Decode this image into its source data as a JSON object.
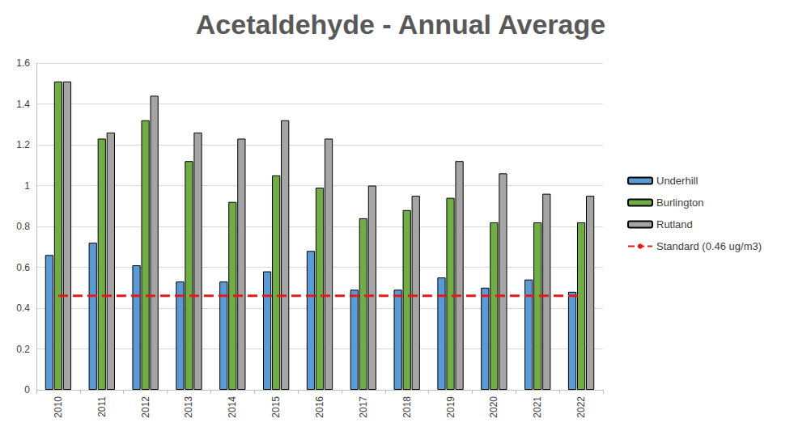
{
  "chart_data": {
    "type": "bar",
    "title": "Acetaldehyde - Annual Average",
    "categories": [
      "2010",
      "2011",
      "2012",
      "2013",
      "2014",
      "2015",
      "2016",
      "2017",
      "2018",
      "2019",
      "2020",
      "2021",
      "2022"
    ],
    "series": [
      {
        "name": "Underhill",
        "color": "#5b9bd5",
        "values": [
          0.66,
          0.72,
          0.61,
          0.53,
          0.53,
          0.58,
          0.68,
          0.49,
          0.49,
          0.55,
          0.5,
          0.54,
          0.48
        ]
      },
      {
        "name": "Burlington",
        "color": "#70ad47",
        "values": [
          1.51,
          1.23,
          1.32,
          1.12,
          0.92,
          1.05,
          0.99,
          0.84,
          0.88,
          0.94,
          0.82,
          0.82,
          0.82
        ]
      },
      {
        "name": "Rutland",
        "color": "#a5a5a5",
        "values": [
          1.51,
          1.26,
          1.44,
          1.26,
          1.23,
          1.32,
          1.23,
          1.0,
          0.95,
          1.12,
          1.06,
          0.96,
          0.95
        ]
      },
      {
        "name": "Standard (0.46 ug/m3)",
        "type": "line",
        "line_style": "dashed",
        "color": "#e41a1c",
        "values": [
          0.46,
          0.46,
          0.46,
          0.46,
          0.46,
          0.46,
          0.46,
          0.46,
          0.46,
          0.46,
          0.46,
          0.46,
          0.46
        ]
      }
    ],
    "ylim": [
      0,
      1.6
    ],
    "yticks": [
      0,
      0.2,
      0.4,
      0.6,
      0.8,
      1,
      1.2,
      1.4,
      1.6
    ],
    "grid": true,
    "legend": "right"
  }
}
